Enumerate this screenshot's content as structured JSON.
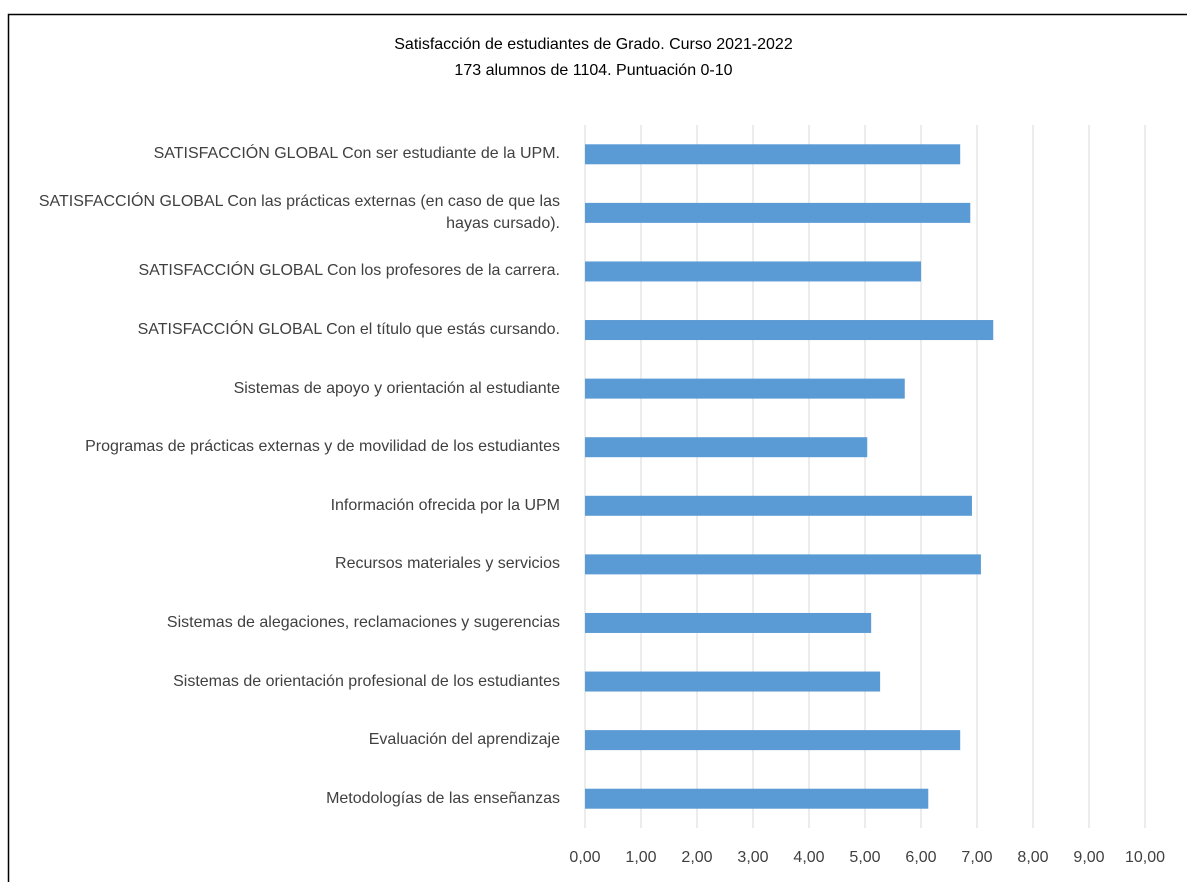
{
  "chart_data": {
    "type": "bar",
    "orientation": "horizontal",
    "title": "Satisfacción de estudiantes de Grado. Curso 2021-2022",
    "subtitle": "173 alumnos de 1104. Puntuación 0-10",
    "categories": [
      "SATISFACCIÓN GLOBAL Con ser estudiante de la UPM.",
      "SATISFACCIÓN GLOBAL Con las prácticas externas (en caso de que las hayas cursado).",
      "SATISFACCIÓN GLOBAL Con los profesores de la carrera.",
      "SATISFACCIÓN GLOBAL Con el título que estás cursando.",
      "Sistemas de apoyo y orientación al estudiante",
      "Programas de prácticas externas y de movilidad de los estudiantes",
      "Información ofrecida por la UPM",
      "Recursos materiales y servicios",
      "Sistemas de alegaciones, reclamaciones y sugerencias",
      "Sistemas de orientación profesional de los estudiantes",
      "Evaluación del aprendizaje",
      "Metodologías de las enseñanzas"
    ],
    "values": [
      6.7,
      6.88,
      6.0,
      7.29,
      5.71,
      5.04,
      6.91,
      7.07,
      5.11,
      5.27,
      6.7,
      6.13
    ],
    "color": "#5b9bd5",
    "xlim": [
      0,
      10
    ],
    "xticks": [
      {
        "value": 0,
        "label": "0,00"
      },
      {
        "value": 1,
        "label": "1,00"
      },
      {
        "value": 2,
        "label": "2,00"
      },
      {
        "value": 3,
        "label": "3,00"
      },
      {
        "value": 4,
        "label": "4,00"
      },
      {
        "value": 5,
        "label": "5,00"
      },
      {
        "value": 6,
        "label": "6,00"
      },
      {
        "value": 7,
        "label": "7,00"
      },
      {
        "value": 8,
        "label": "8,00"
      },
      {
        "value": 9,
        "label": "9,00"
      },
      {
        "value": 10,
        "label": "10,00"
      }
    ],
    "grid": true
  }
}
